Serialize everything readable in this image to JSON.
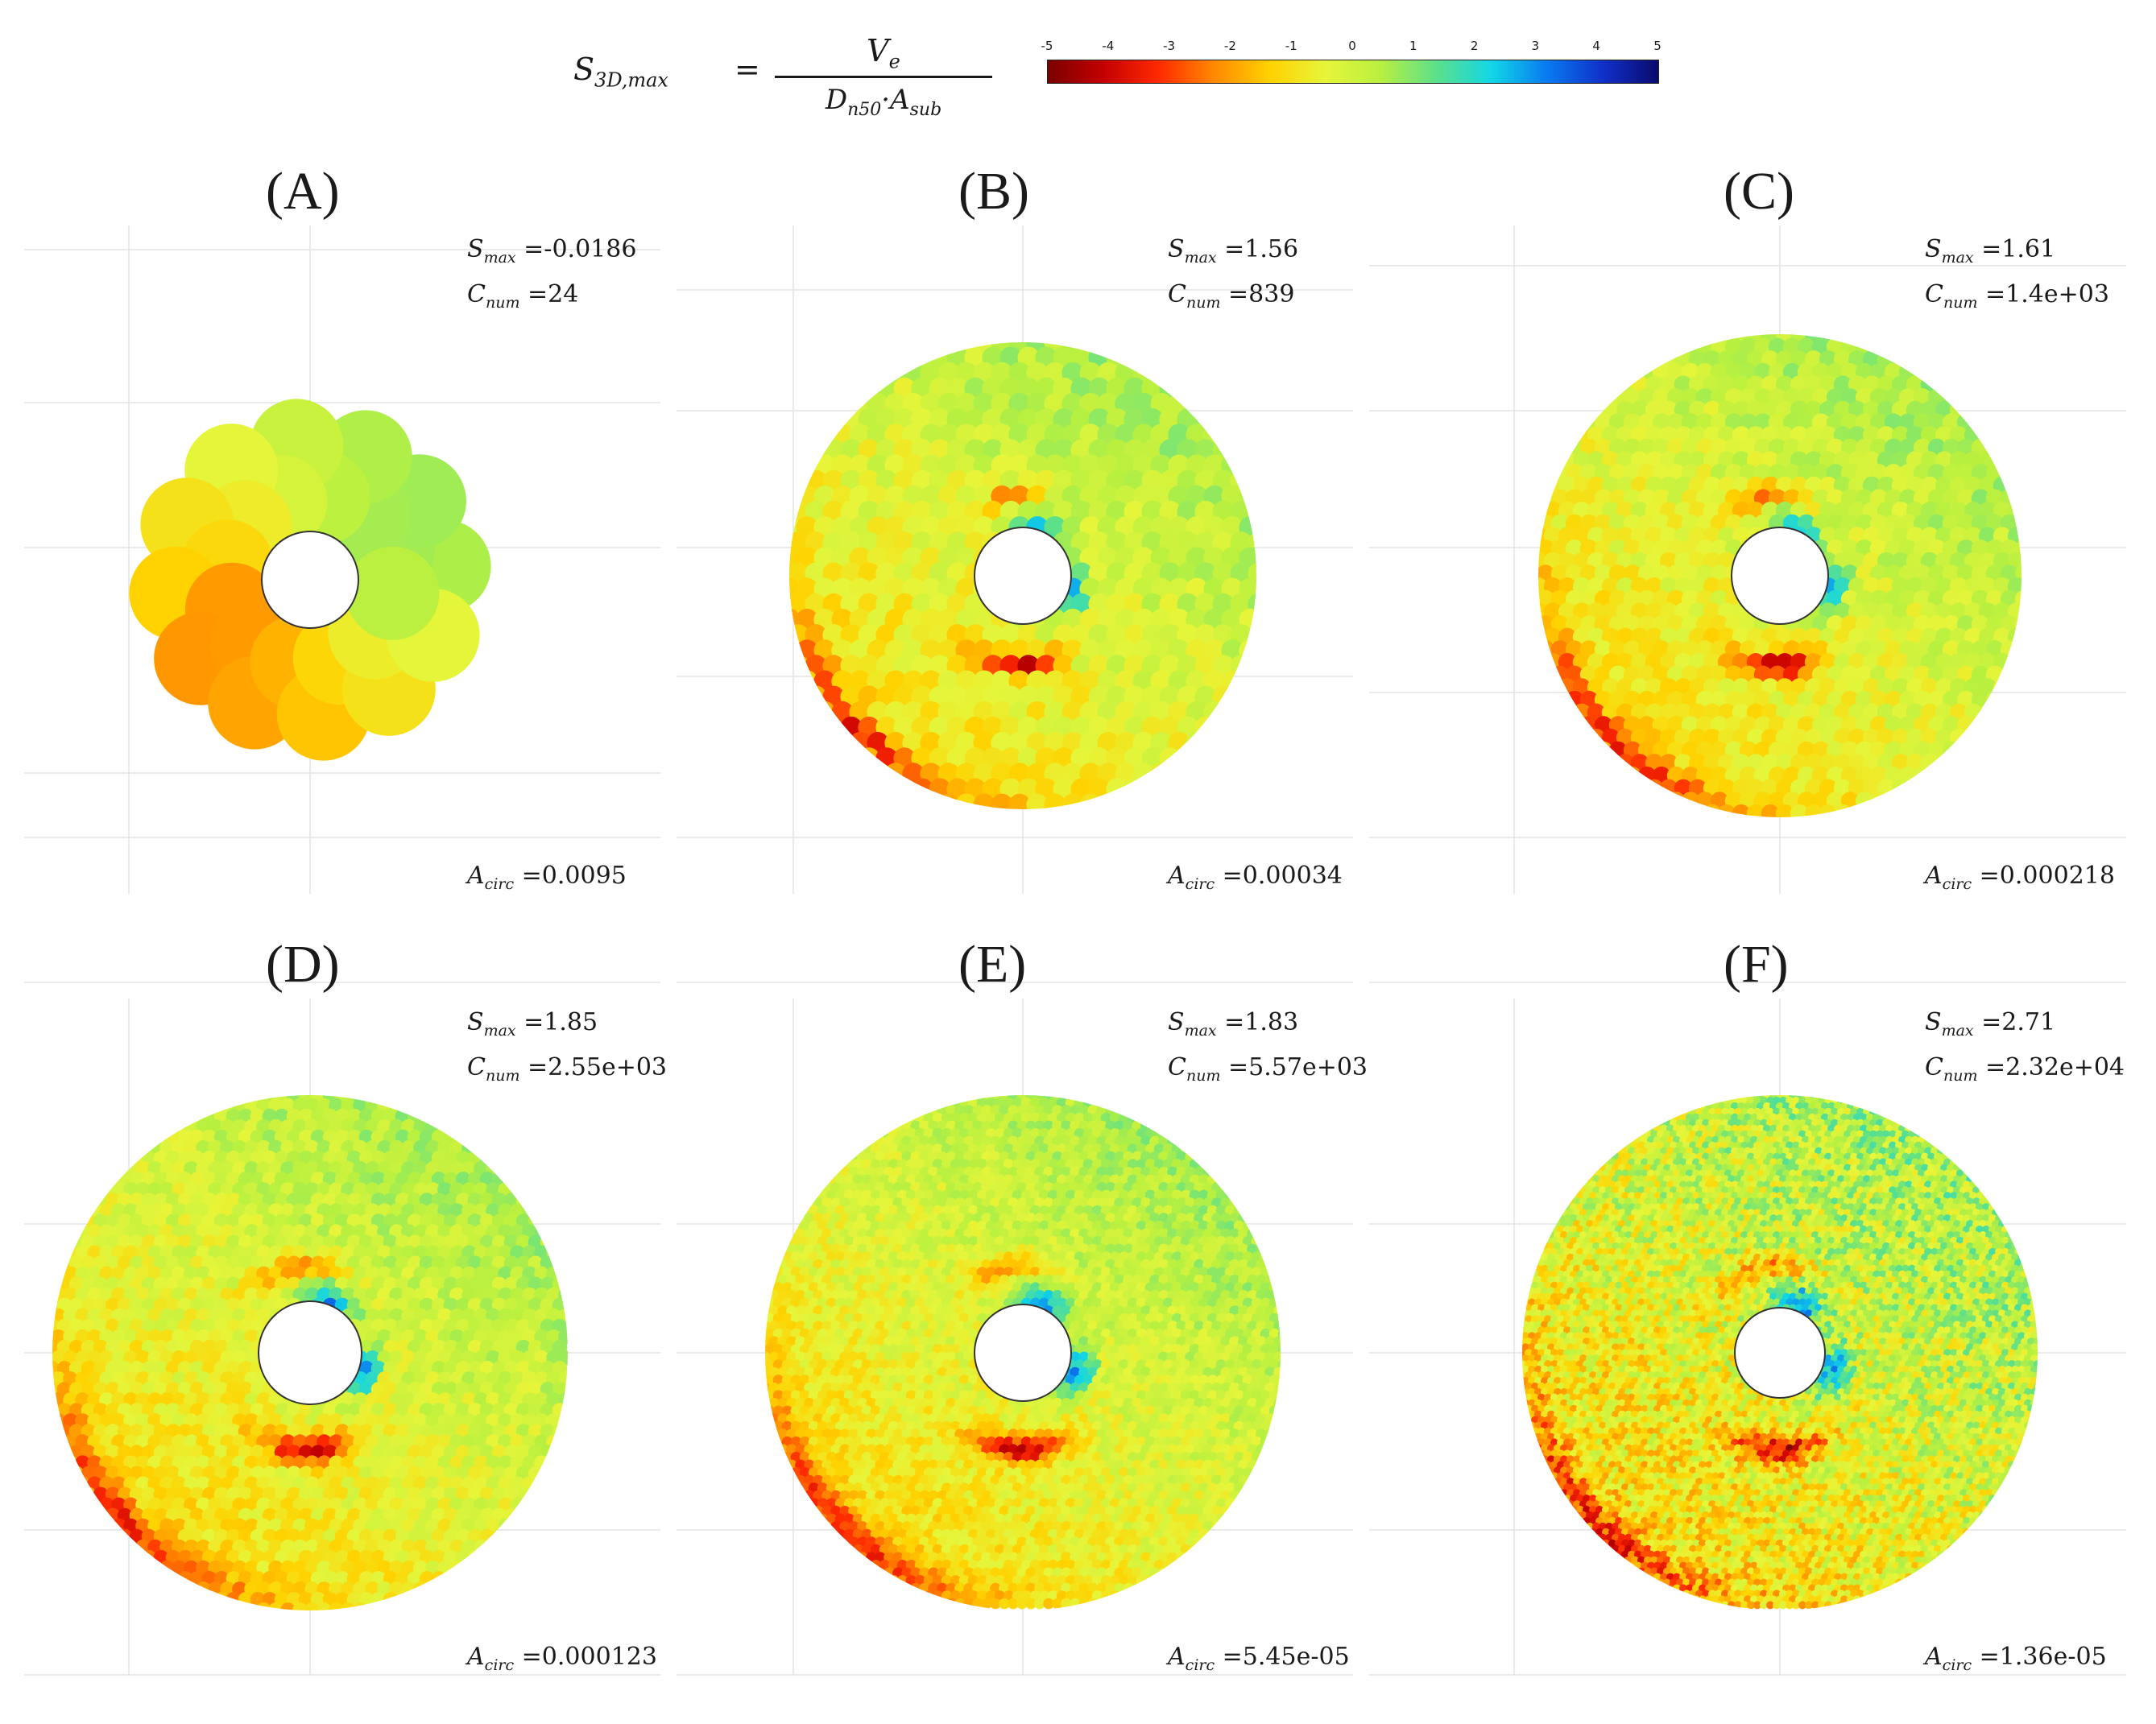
{
  "equation": {
    "lhs_symbol": "S",
    "lhs_subscript": "3D,max",
    "equals": "=",
    "numerator_symbol": "V",
    "numerator_subscript": "e",
    "denominator_symbol_1": "D",
    "denominator_subscript_1": "n50",
    "denominator_dot": "·",
    "denominator_symbol_2": "A",
    "denominator_subscript_2": "sub"
  },
  "colorbar": {
    "range": [
      -5,
      5
    ],
    "ticks": [
      "-5",
      "-4",
      "-3",
      "-2",
      "-1",
      "0",
      "1",
      "2",
      "3",
      "4",
      "5"
    ],
    "colors": [
      "#7a0000",
      "#c40000",
      "#ff2a00",
      "#ff8a00",
      "#ffd200",
      "#e6f53a",
      "#b8f040",
      "#5ce08a",
      "#12d6e6",
      "#0a7af0",
      "#1030c8",
      "#0a0a6e"
    ]
  },
  "chart_data": [
    {
      "type": "heatmap",
      "panel": "(A)",
      "stats": {
        "smax_symbol": "S",
        "smax_sub": "max",
        "smax_value": "=-0.0186",
        "cnum_symbol": "C",
        "cnum_sub": "num",
        "cnum_value": "=24",
        "acirc_symbol": "A",
        "acirc_sub": "circ",
        "acirc_value": "=0.0095"
      },
      "smax": -0.0186,
      "cnum": 24,
      "acirc": 0.0095,
      "cell_size": "coarse"
    },
    {
      "type": "heatmap",
      "panel": "(B)",
      "stats": {
        "smax_symbol": "S",
        "smax_sub": "max",
        "smax_value": "=1.56",
        "cnum_symbol": "C",
        "cnum_sub": "num",
        "cnum_value": "=839",
        "acirc_symbol": "A",
        "acirc_sub": "circ",
        "acirc_value": "=0.00034"
      },
      "smax": 1.56,
      "cnum": 839,
      "acirc": 0.00034,
      "cell_size": "medium"
    },
    {
      "type": "heatmap",
      "panel": "(C)",
      "stats": {
        "smax_symbol": "S",
        "smax_sub": "max",
        "smax_value": "=1.61",
        "cnum_symbol": "C",
        "cnum_sub": "num",
        "cnum_value": "=1.4e+03",
        "acirc_symbol": "A",
        "acirc_sub": "circ",
        "acirc_value": "=0.000218"
      },
      "smax": 1.61,
      "cnum": 1400,
      "acirc": 0.000218,
      "cell_size": "medium-fine"
    },
    {
      "type": "heatmap",
      "panel": "(D)",
      "stats": {
        "smax_symbol": "S",
        "smax_sub": "max",
        "smax_value": "=1.85",
        "cnum_symbol": "C",
        "cnum_sub": "num",
        "cnum_value": "=2.55e+03",
        "acirc_symbol": "A",
        "acirc_sub": "circ",
        "acirc_value": "=0.000123"
      },
      "smax": 1.85,
      "cnum": 2550,
      "acirc": 0.000123,
      "cell_size": "fine"
    },
    {
      "type": "heatmap",
      "panel": "(E)",
      "stats": {
        "smax_symbol": "S",
        "smax_sub": "max",
        "smax_value": "=1.83",
        "cnum_symbol": "C",
        "cnum_sub": "num",
        "cnum_value": "=5.57e+03",
        "acirc_symbol": "A",
        "acirc_sub": "circ",
        "acirc_value": "=5.45e-05"
      },
      "smax": 1.83,
      "cnum": 5570,
      "acirc": 5.45e-05,
      "cell_size": "finer"
    },
    {
      "type": "heatmap",
      "panel": "(F)",
      "stats": {
        "smax_symbol": "S",
        "smax_sub": "max",
        "smax_value": "=2.71",
        "cnum_symbol": "C",
        "cnum_sub": "num",
        "cnum_value": "=2.32e+04",
        "acirc_symbol": "A",
        "acirc_sub": "circ",
        "acirc_value": "=1.36e-05"
      },
      "smax": 2.71,
      "cnum": 23200,
      "acirc": 1.36e-05,
      "cell_size": "finest"
    }
  ]
}
